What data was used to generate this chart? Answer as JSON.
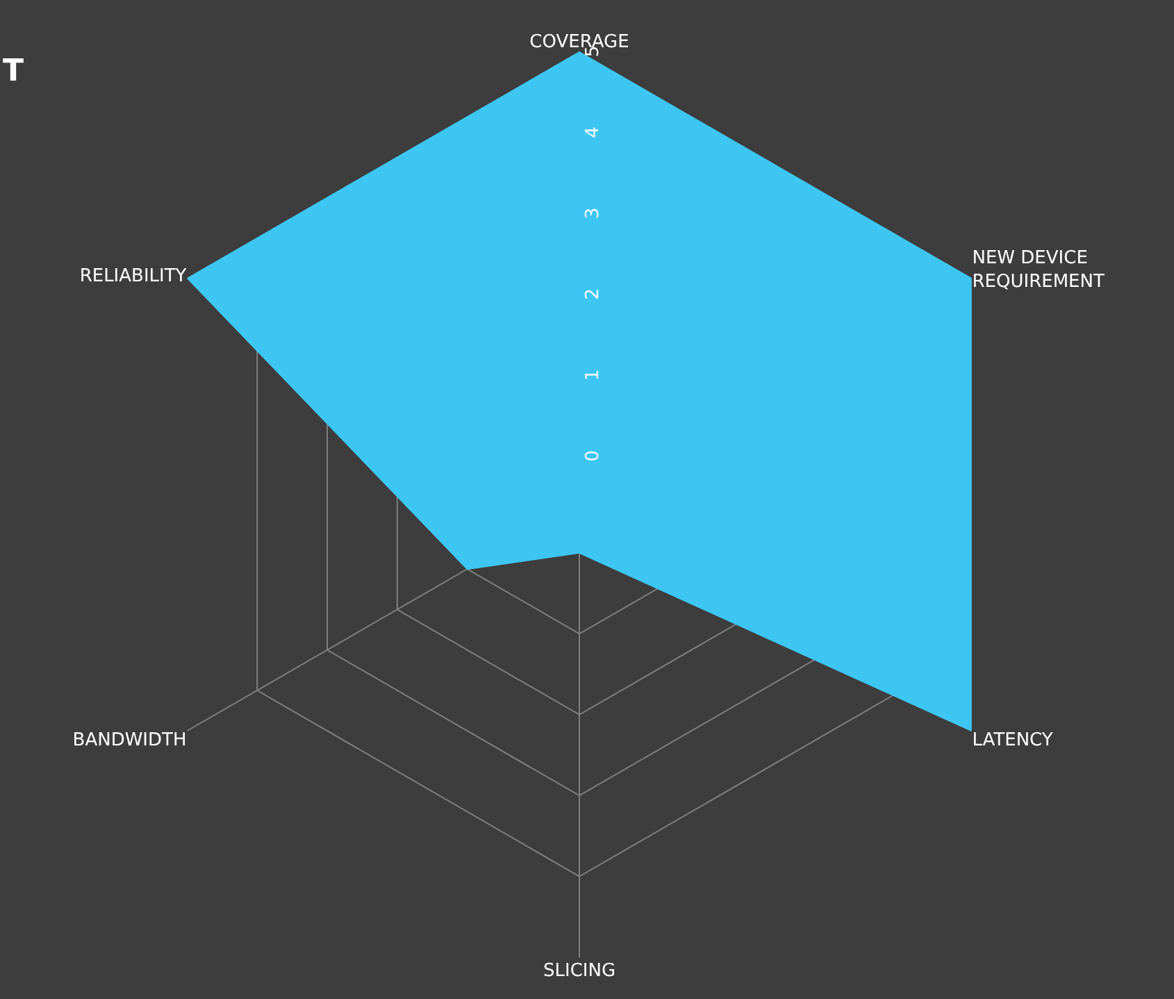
{
  "chart_data": {
    "type": "radar",
    "title": "T",
    "categories": [
      "COVERAGE",
      "NEW DEVICE\nREQUIREMENT",
      "LATENCY",
      "SLICING",
      "BANDWIDTH",
      "RELIABILITY"
    ],
    "series": [
      {
        "color": "#3ec6f2",
        "values": [
          5,
          5,
          5,
          0,
          1,
          5
        ]
      }
    ],
    "ylim": [
      -0.6,
      5
    ],
    "yticks": [
      0,
      1,
      2,
      3,
      4,
      5
    ],
    "grid": true
  }
}
